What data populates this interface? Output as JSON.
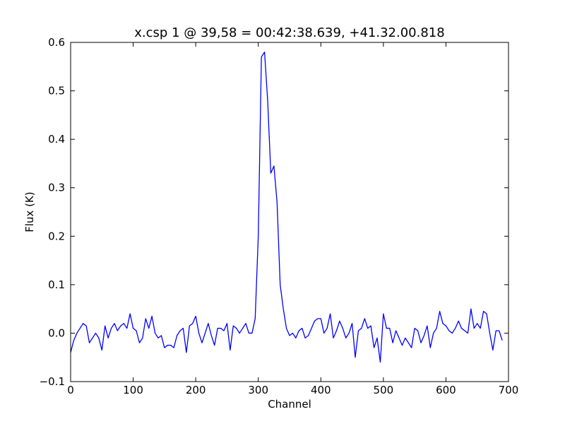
{
  "chart_data": {
    "type": "line",
    "title": "x.csp 1 @ 39,58 = 00:42:38.639, +41.32.00.818",
    "x_label": "Channel",
    "y_label": "Flux (K)",
    "x": [
      0,
      5,
      10,
      15,
      20,
      25,
      30,
      35,
      40,
      45,
      50,
      55,
      60,
      65,
      70,
      75,
      80,
      85,
      90,
      95,
      100,
      105,
      110,
      115,
      120,
      125,
      130,
      135,
      140,
      145,
      150,
      155,
      160,
      165,
      170,
      175,
      180,
      185,
      190,
      195,
      200,
      205,
      210,
      215,
      220,
      225,
      230,
      235,
      240,
      245,
      250,
      255,
      260,
      265,
      270,
      275,
      280,
      285,
      290,
      295,
      300,
      305,
      310,
      315,
      320,
      325,
      330,
      335,
      340,
      345,
      350,
      355,
      360,
      365,
      370,
      375,
      380,
      385,
      390,
      395,
      400,
      405,
      410,
      415,
      420,
      425,
      430,
      435,
      440,
      445,
      450,
      455,
      460,
      465,
      470,
      475,
      480,
      485,
      490,
      495,
      500,
      505,
      510,
      515,
      520,
      525,
      530,
      535,
      540,
      545,
      550,
      555,
      560,
      565,
      570,
      575,
      580,
      585,
      590,
      595,
      600,
      605,
      610,
      615,
      620,
      625,
      630,
      635,
      640,
      645,
      650,
      655,
      660,
      665,
      670,
      675,
      680,
      685,
      690
    ],
    "values": [
      -0.04,
      -0.015,
      0.0,
      0.01,
      0.02,
      0.015,
      -0.02,
      -0.01,
      0.0,
      -0.01,
      -0.035,
      0.015,
      -0.01,
      0.01,
      0.02,
      0.005,
      0.015,
      0.02,
      0.01,
      0.04,
      0.01,
      0.005,
      -0.02,
      -0.01,
      0.03,
      0.01,
      0.035,
      0.0,
      -0.01,
      -0.005,
      -0.03,
      -0.025,
      -0.025,
      -0.03,
      -0.005,
      0.005,
      0.01,
      -0.04,
      0.015,
      0.02,
      0.035,
      0.0,
      -0.02,
      0.0,
      0.02,
      -0.005,
      -0.025,
      0.01,
      0.01,
      0.005,
      0.02,
      -0.035,
      0.015,
      0.01,
      0.0,
      0.01,
      0.02,
      0.0,
      0.0,
      0.03,
      0.2,
      0.57,
      0.58,
      0.48,
      0.33,
      0.345,
      0.27,
      0.1,
      0.05,
      0.01,
      -0.005,
      0.0,
      -0.01,
      0.005,
      0.01,
      -0.01,
      -0.005,
      0.01,
      0.025,
      0.03,
      0.03,
      0.0,
      0.01,
      0.04,
      -0.01,
      0.005,
      0.025,
      0.01,
      -0.01,
      0.0,
      0.02,
      -0.05,
      0.005,
      0.01,
      0.03,
      0.01,
      0.015,
      -0.03,
      -0.01,
      -0.06,
      0.04,
      0.01,
      0.01,
      -0.02,
      0.005,
      -0.01,
      -0.025,
      -0.01,
      -0.02,
      -0.03,
      0.01,
      0.005,
      -0.02,
      -0.005,
      0.015,
      -0.03,
      0.0,
      0.01,
      0.045,
      0.02,
      0.015,
      0.005,
      0.0,
      0.01,
      0.025,
      0.01,
      0.005,
      0.0,
      0.05,
      0.01,
      0.02,
      0.01,
      0.045,
      0.04,
      0.0,
      -0.035,
      0.005,
      0.005,
      -0.015
    ],
    "color": "#0000ff",
    "xlim": [
      0,
      700
    ],
    "xticks": [
      0,
      100,
      200,
      300,
      400,
      500,
      600,
      700
    ],
    "ylim": [
      -0.1,
      0.6
    ],
    "yticks": [
      {
        "value": -0.1,
        "label": "−0.1"
      },
      {
        "value": 0,
        "label": "0.0"
      },
      0.1,
      0.2,
      0.3,
      0.4,
      0.5,
      0.6
    ],
    "grid": false
  }
}
